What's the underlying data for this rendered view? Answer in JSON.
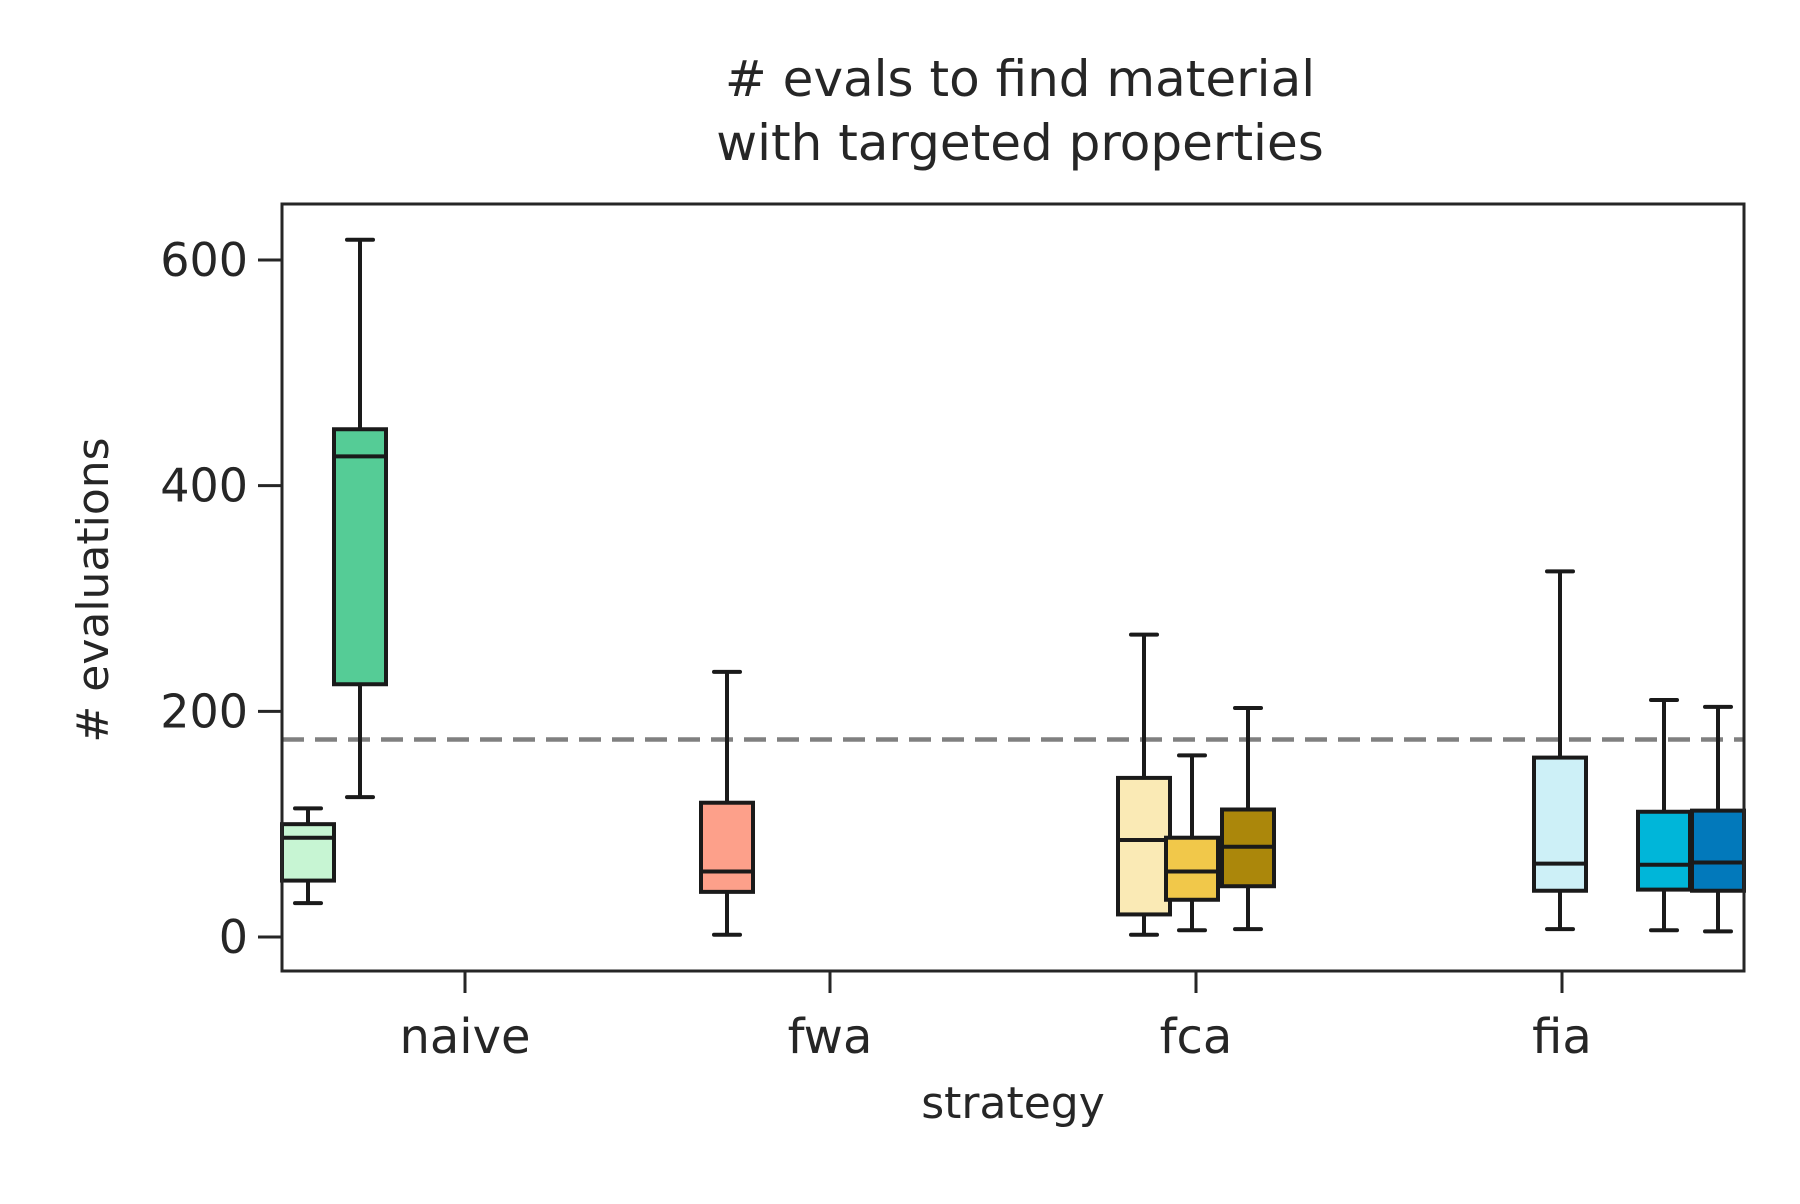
{
  "chart_data": {
    "type": "box",
    "title_lines": [
      "# evals to find material",
      "with targeted properties"
    ],
    "xlabel": "strategy",
    "ylabel": "# evaluations",
    "categories": [
      "naive",
      "fwa",
      "fca",
      "fia"
    ],
    "yticks": [
      0,
      200,
      400,
      600
    ],
    "ylim": [
      -30,
      650
    ],
    "reference_line": {
      "y": 175,
      "color": "#808080",
      "style": "dashed"
    },
    "boxes": [
      {
        "category": "naive",
        "name": "naive-1",
        "color": "#c7f5d3",
        "whisker_low": 30,
        "q1": 50,
        "median": 88,
        "q3": 100,
        "whisker_high": 114
      },
      {
        "category": "naive",
        "name": "naive-2",
        "color": "#55cc96",
        "whisker_low": 124,
        "q1": 224,
        "median": 426,
        "q3": 450,
        "whisker_high": 618
      },
      {
        "category": "fwa",
        "name": "fwa-1",
        "color": "#fda08a",
        "whisker_low": 2,
        "q1": 40,
        "median": 58,
        "q3": 119,
        "whisker_high": 235
      },
      {
        "category": "fca",
        "name": "fca-1",
        "color": "#faeab5",
        "whisker_low": 2,
        "q1": 20,
        "median": 86,
        "q3": 141,
        "whisker_high": 268
      },
      {
        "category": "fca",
        "name": "fca-2",
        "color": "#f1c84a",
        "whisker_low": 6,
        "q1": 33,
        "median": 58,
        "q3": 88,
        "whisker_high": 161
      },
      {
        "category": "fca",
        "name": "fca-3",
        "color": "#ab870b",
        "whisker_low": 7,
        "q1": 45,
        "median": 80,
        "q3": 113,
        "whisker_high": 203
      },
      {
        "category": "fia",
        "name": "fia-1",
        "color": "#cdf0f7",
        "whisker_low": 7,
        "q1": 41,
        "median": 65,
        "q3": 159,
        "whisker_high": 324
      },
      {
        "category": "fia",
        "name": "fia-2",
        "color": "#00b6d9",
        "whisker_low": 6,
        "q1": 42,
        "median": 64,
        "q3": 111,
        "whisker_high": 210
      },
      {
        "category": "fia",
        "name": "fia-3",
        "color": "#0279bb",
        "whisker_low": 5,
        "q1": 41,
        "median": 66,
        "q3": 112,
        "whisker_high": 204
      }
    ]
  }
}
